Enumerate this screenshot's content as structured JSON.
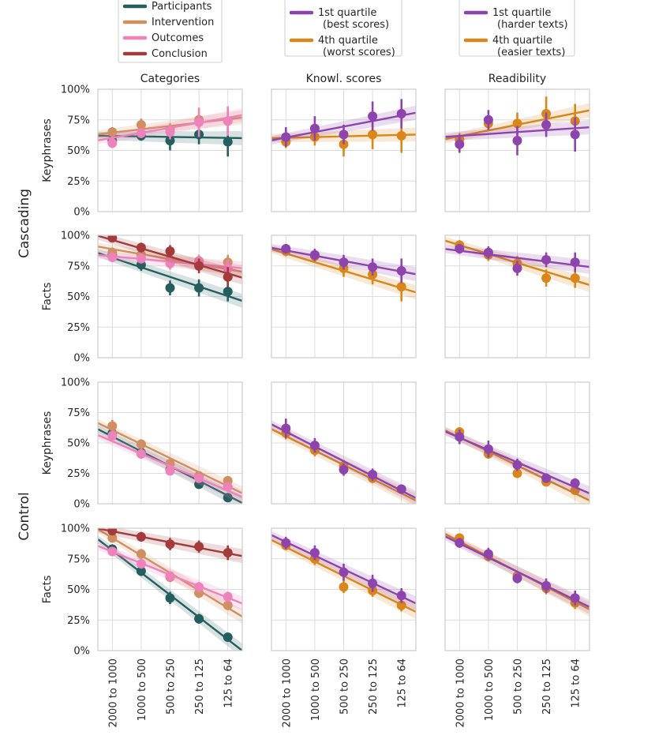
{
  "colors": {
    "participants": "#255e5f",
    "intervention": "#d08f60",
    "outcomes": "#ee82bb",
    "conclusion": "#a33b3b",
    "q1": "#8e44ad",
    "q4": "#d9861a",
    "grid": "#dddddd",
    "spine": "#cccccc"
  },
  "legends": [
    {
      "entries": [
        {
          "label": "Participants",
          "color_key": "participants"
        },
        {
          "label": "Intervention",
          "color_key": "intervention"
        },
        {
          "label": "Outcomes",
          "color_key": "outcomes"
        },
        {
          "label": "Conclusion",
          "color_key": "conclusion"
        }
      ]
    },
    {
      "entries": [
        {
          "label": "1st quartile",
          "sublabel": "(best scores)",
          "color_key": "q1"
        },
        {
          "label": "4th quartile",
          "sublabel": "(worst scores)",
          "color_key": "q4"
        }
      ]
    },
    {
      "entries": [
        {
          "label": "1st quartile",
          "sublabel": "(harder texts)",
          "color_key": "q1"
        },
        {
          "label": "4th quartile",
          "sublabel": "(easier texts)",
          "color_key": "q4"
        }
      ]
    }
  ],
  "chart_data": {
    "type": "scatter",
    "column_titles": [
      "Categories",
      "Knowl. scores",
      "Readibility"
    ],
    "row_labels": [
      "Keyphrases",
      "Facts",
      "Keyphrases",
      "Facts"
    ],
    "group_labels": [
      "Cascading",
      "Control"
    ],
    "categories": [
      "2000 to 1000",
      "1000 to 500",
      "500 to 250",
      "250 to 125",
      "125 to 64"
    ],
    "yticks": [
      "0%",
      "25%",
      "50%",
      "75%",
      "100%"
    ],
    "ylim": [
      0,
      100
    ],
    "panels": [
      {
        "row": 0,
        "col": 0,
        "series": [
          {
            "key": "participants",
            "name": "Participants",
            "points": [
              [
                58,
                4
              ],
              [
                62,
                4
              ],
              [
                58,
                8
              ],
              [
                63,
                8
              ],
              [
                57,
                12
              ]
            ],
            "line": [
              62,
              60
            ]
          },
          {
            "key": "intervention",
            "name": "Intervention",
            "points": [
              [
                65,
                4
              ],
              [
                71,
                5
              ],
              [
                67,
                5
              ],
              [
                75,
                6
              ],
              [
                74,
                8
              ]
            ],
            "line": [
              63,
              77
            ]
          },
          {
            "key": "conclusion",
            "name": "Conclusion",
            "points": [],
            "line": null
          },
          {
            "key": "outcomes",
            "name": "Outcomes",
            "points": [
              [
                56,
                4
              ],
              [
                64,
                4
              ],
              [
                65,
                6
              ],
              [
                73,
                12
              ],
              [
                74,
                12
              ]
            ],
            "line": [
              58,
              79
            ]
          }
        ]
      },
      {
        "row": 0,
        "col": 1,
        "series": [
          {
            "key": "q4",
            "name": "4th quartile",
            "points": [
              [
                57,
                5
              ],
              [
                61,
                7
              ],
              [
                55,
                10
              ],
              [
                63,
                12
              ],
              [
                62,
                14
              ]
            ],
            "line": [
              60,
              63
            ]
          },
          {
            "key": "q1",
            "name": "1st quartile",
            "points": [
              [
                61,
                8
              ],
              [
                68,
                10
              ],
              [
                63,
                8
              ],
              [
                78,
                12
              ],
              [
                80,
                12
              ]
            ],
            "line": [
              58,
              81
            ]
          }
        ]
      },
      {
        "row": 0,
        "col": 2,
        "series": [
          {
            "key": "q4",
            "name": "4th quartile",
            "points": [
              [
                59,
                5
              ],
              [
                72,
                6
              ],
              [
                72,
                9
              ],
              [
                80,
                14
              ],
              [
                74,
                14
              ]
            ],
            "line": [
              59,
              83
            ]
          },
          {
            "key": "q1",
            "name": "1st quartile",
            "points": [
              [
                55,
                7
              ],
              [
                75,
                8
              ],
              [
                58,
                12
              ],
              [
                71,
                10
              ],
              [
                63,
                14
              ]
            ],
            "line": [
              61,
              69
            ]
          }
        ]
      },
      {
        "row": 1,
        "col": 0,
        "series": [
          {
            "key": "participants",
            "name": "Participants",
            "points": [
              [
                84,
                4
              ],
              [
                76,
                5
              ],
              [
                57,
                6
              ],
              [
                57,
                7
              ],
              [
                54,
                8
              ]
            ],
            "line": [
              86,
              46
            ]
          },
          {
            "key": "intervention",
            "name": "Intervention",
            "points": [
              [
                86,
                4
              ],
              [
                84,
                4
              ],
              [
                80,
                5
              ],
              [
                79,
                5
              ],
              [
                78,
                6
              ]
            ],
            "line": [
              91,
              70
            ]
          },
          {
            "key": "outcomes",
            "name": "Outcomes",
            "points": [
              [
                82,
                4
              ],
              [
                81,
                4
              ],
              [
                77,
                5
              ],
              [
                78,
                6
              ],
              [
                73,
                7
              ]
            ],
            "line": [
              84,
              73
            ]
          },
          {
            "key": "conclusion",
            "name": "Conclusion",
            "points": [
              [
                98,
                3
              ],
              [
                90,
                4
              ],
              [
                87,
                5
              ],
              [
                75,
                6
              ],
              [
                66,
                8
              ]
            ],
            "line": [
              100,
              65
            ]
          }
        ]
      },
      {
        "row": 1,
        "col": 1,
        "series": [
          {
            "key": "q4",
            "name": "4th quartile",
            "points": [
              [
                87,
                4
              ],
              [
                83,
                5
              ],
              [
                73,
                7
              ],
              [
                68,
                8
              ],
              [
                58,
                12
              ]
            ],
            "line": [
              89,
              53
            ]
          },
          {
            "key": "q1",
            "name": "1st quartile",
            "points": [
              [
                89,
                4
              ],
              [
                84,
                5
              ],
              [
                78,
                6
              ],
              [
                74,
                7
              ],
              [
                71,
                10
              ]
            ],
            "line": [
              90,
              68
            ]
          }
        ]
      },
      {
        "row": 1,
        "col": 2,
        "series": [
          {
            "key": "q4",
            "name": "4th quartile",
            "points": [
              [
                92,
                4
              ],
              [
                84,
                5
              ],
              [
                77,
                6
              ],
              [
                65,
                7
              ],
              [
                65,
                8
              ]
            ],
            "line": [
              96,
              59
            ]
          },
          {
            "key": "q1",
            "name": "1st quartile",
            "points": [
              [
                89,
                4
              ],
              [
                86,
                5
              ],
              [
                73,
                6
              ],
              [
                80,
                6
              ],
              [
                78,
                8
              ]
            ],
            "line": [
              89,
              74
            ]
          }
        ]
      },
      {
        "row": 2,
        "col": 0,
        "series": [
          {
            "key": "participants",
            "name": "Participants",
            "points": [
              [
                58,
                4
              ],
              [
                42,
                4
              ],
              [
                28,
                4
              ],
              [
                16,
                3
              ],
              [
                5,
                3
              ]
            ],
            "line": [
              62,
              0
            ]
          },
          {
            "key": "intervention",
            "name": "Intervention",
            "points": [
              [
                64,
                5
              ],
              [
                49,
                4
              ],
              [
                33,
                3
              ],
              [
                23,
                3
              ],
              [
                19,
                3
              ]
            ],
            "line": [
              67,
              8
            ]
          },
          {
            "key": "outcomes",
            "name": "Outcomes",
            "points": [
              [
                56,
                4
              ],
              [
                41,
                4
              ],
              [
                27,
                3
              ],
              [
                21,
                3
              ],
              [
                14,
                3
              ]
            ],
            "line": [
              57,
              5
            ]
          }
        ]
      },
      {
        "row": 2,
        "col": 1,
        "series": [
          {
            "key": "q4",
            "name": "4th quartile",
            "points": [
              [
                58,
                5
              ],
              [
                44,
                5
              ],
              [
                31,
                5
              ],
              [
                21,
                4
              ],
              [
                12,
                3
              ]
            ],
            "line": [
              62,
              2
            ]
          },
          {
            "key": "q1",
            "name": "1st quartile",
            "points": [
              [
                62,
                8
              ],
              [
                48,
                6
              ],
              [
                28,
                5
              ],
              [
                24,
                5
              ],
              [
                12,
                3
              ]
            ],
            "line": [
              66,
              4
            ]
          }
        ]
      },
      {
        "row": 2,
        "col": 2,
        "series": [
          {
            "key": "q4",
            "name": "4th quartile",
            "points": [
              [
                59,
                4
              ],
              [
                41,
                4
              ],
              [
                25,
                3
              ],
              [
                18,
                3
              ],
              [
                11,
                3
              ]
            ],
            "line": [
              61,
              2
            ]
          },
          {
            "key": "q1",
            "name": "1st quartile",
            "points": [
              [
                55,
                6
              ],
              [
                45,
                7
              ],
              [
                32,
                5
              ],
              [
                21,
                4
              ],
              [
                17,
                4
              ]
            ],
            "line": [
              60,
              8
            ]
          }
        ]
      },
      {
        "row": 3,
        "col": 0,
        "series": [
          {
            "key": "participants",
            "name": "Participants",
            "points": [
              [
                83,
                3
              ],
              [
                65,
                4
              ],
              [
                43,
                5
              ],
              [
                26,
                4
              ],
              [
                11,
                3
              ]
            ],
            "line": [
              92,
              -1
            ]
          },
          {
            "key": "intervention",
            "name": "Intervention",
            "points": [
              [
                92,
                3
              ],
              [
                79,
                4
              ],
              [
                60,
                4
              ],
              [
                47,
                4
              ],
              [
                37,
                4
              ]
            ],
            "line": [
              100,
              27
            ]
          },
          {
            "key": "outcomes",
            "name": "Outcomes",
            "points": [
              [
                81,
                3
              ],
              [
                71,
                4
              ],
              [
                61,
                4
              ],
              [
                52,
                4
              ],
              [
                44,
                4
              ]
            ],
            "line": [
              86,
              38
            ]
          },
          {
            "key": "conclusion",
            "name": "Conclusion",
            "points": [
              [
                98,
                3
              ],
              [
                93,
                4
              ],
              [
                87,
                5
              ],
              [
                85,
                5
              ],
              [
                80,
                6
              ]
            ],
            "line": [
              100,
              77
            ]
          }
        ]
      },
      {
        "row": 3,
        "col": 1,
        "series": [
          {
            "key": "q4",
            "name": "4th quartile",
            "points": [
              [
                86,
                4
              ],
              [
                75,
                5
              ],
              [
                52,
                5
              ],
              [
                49,
                5
              ],
              [
                37,
                5
              ]
            ],
            "line": [
              91,
              31
            ]
          },
          {
            "key": "q1",
            "name": "1st quartile",
            "points": [
              [
                88,
                5
              ],
              [
                80,
                6
              ],
              [
                64,
                7
              ],
              [
                55,
                7
              ],
              [
                45,
                6
              ]
            ],
            "line": [
              95,
              38
            ]
          }
        ]
      },
      {
        "row": 3,
        "col": 2,
        "series": [
          {
            "key": "q4",
            "name": "4th quartile",
            "points": [
              [
                92,
                3
              ],
              [
                77,
                4
              ],
              [
                61,
                4
              ],
              [
                51,
                5
              ],
              [
                39,
                5
              ]
            ],
            "line": [
              96,
              33
            ]
          },
          {
            "key": "q1",
            "name": "1st quartile",
            "points": [
              [
                88,
                4
              ],
              [
                79,
                5
              ],
              [
                59,
                4
              ],
              [
                53,
                6
              ],
              [
                43,
                6
              ]
            ],
            "line": [
              94,
              35
            ]
          }
        ]
      }
    ]
  }
}
